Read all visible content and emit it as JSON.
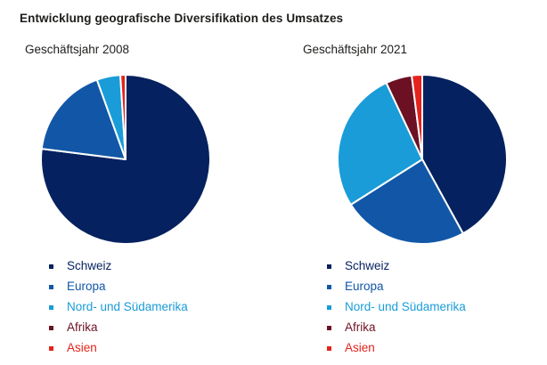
{
  "title": "Entwicklung geografische Diversifikation des Umsatzes",
  "charts": [
    {
      "subtitle": "Geschäftsjahr 2008"
    },
    {
      "subtitle": "Geschäftsjahr 2021"
    }
  ],
  "legend": {
    "items": [
      {
        "label": "Schweiz",
        "color": "#05215f"
      },
      {
        "label": "Europa",
        "color": "#1257a7"
      },
      {
        "label": "Nord- und Südamerika",
        "color": "#199cd8"
      },
      {
        "label": "Afrika",
        "color": "#6c1023"
      },
      {
        "label": "Asien",
        "color": "#e4231c"
      }
    ]
  },
  "chart_data": [
    {
      "type": "pie",
      "title": "Geschäftsjahr 2008",
      "categories": [
        "Schweiz",
        "Europa",
        "Nord- und Südamerika",
        "Afrika",
        "Asien"
      ],
      "values": [
        77,
        17.5,
        4.5,
        0,
        1
      ],
      "values_unit": "percent (estimated from slice angles)",
      "colors": [
        "#05215f",
        "#1257a7",
        "#199cd8",
        "#6c1023",
        "#e4231c"
      ],
      "start_angle_deg": 0,
      "direction": "clockwise",
      "slice_border_color": "#ffffff",
      "legend_position": "bottom-left"
    },
    {
      "type": "pie",
      "title": "Geschäftsjahr 2021",
      "categories": [
        "Schweiz",
        "Europa",
        "Nord- und Südamerika",
        "Afrika",
        "Asien"
      ],
      "values": [
        42,
        24,
        27,
        5,
        2
      ],
      "values_unit": "percent (estimated from slice angles)",
      "colors": [
        "#05215f",
        "#1257a7",
        "#199cd8",
        "#6c1023",
        "#e4231c"
      ],
      "start_angle_deg": 0,
      "direction": "clockwise",
      "slice_border_color": "#ffffff",
      "legend_position": "bottom-left"
    }
  ]
}
